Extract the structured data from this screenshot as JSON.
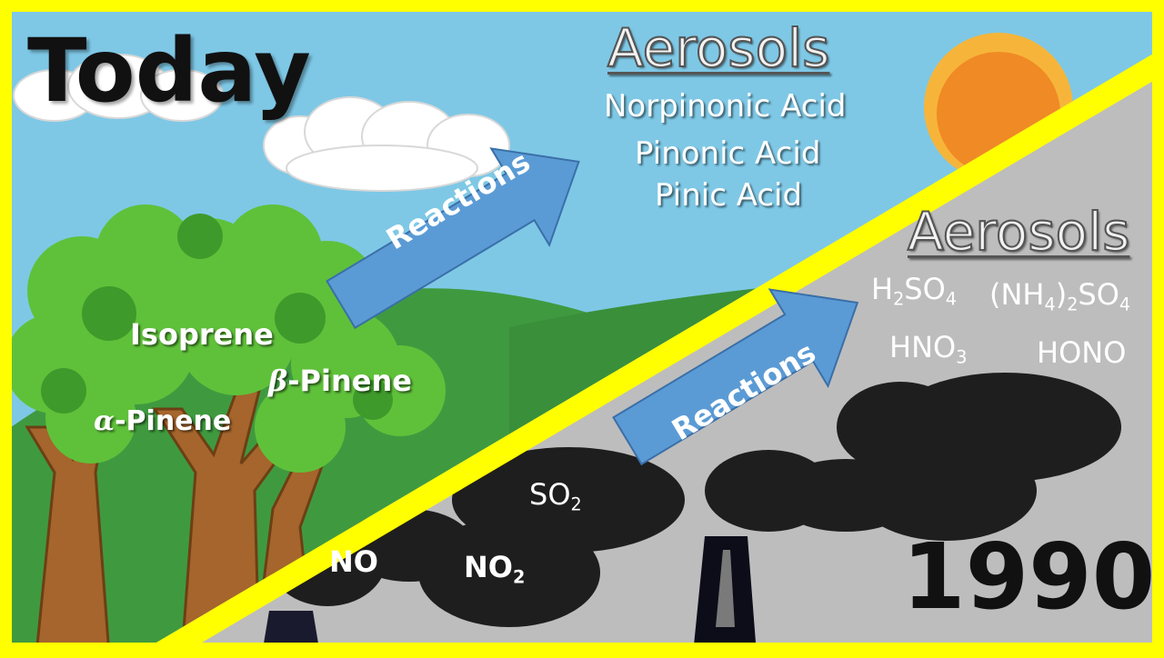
{
  "today": {
    "title": "Today",
    "aerosols_heading": "Aerosols",
    "aerosols": [
      "Norpinonic Acid",
      "Pinonic Acid",
      "Pinic Acid"
    ],
    "arrow_label": "Reactions",
    "emissions": {
      "isoprene": "Isoprene",
      "beta_symbol": "β",
      "beta_name": "-Pinene",
      "alpha_symbol": "α",
      "alpha_name": "-Pinene"
    }
  },
  "past": {
    "year": "1990",
    "aerosols_heading": "Aerosols",
    "arrow_label": "Reactions",
    "h2so4": {
      "a": "H",
      "b": "2",
      "c": "SO",
      "d": "4"
    },
    "nh4so4": {
      "a": "(NH",
      "b": "4",
      "c": ")",
      "d": "2",
      "e": "SO",
      "f": "4"
    },
    "hno3": {
      "a": "HNO",
      "b": "3"
    },
    "hono": "HONO",
    "pollutants": {
      "so2": {
        "a": "SO",
        "b": "2"
      },
      "no": "NO",
      "no2": {
        "a": "NO",
        "b": "2"
      }
    }
  },
  "colors": {
    "border": "#ffff00",
    "sky": "#7ec8e6",
    "smog": "#bdbdbd",
    "smoke": "#1e1e1e",
    "arrow": "#5b9bd5",
    "sun": "#f08a24",
    "hill": "#3f9a3f"
  }
}
